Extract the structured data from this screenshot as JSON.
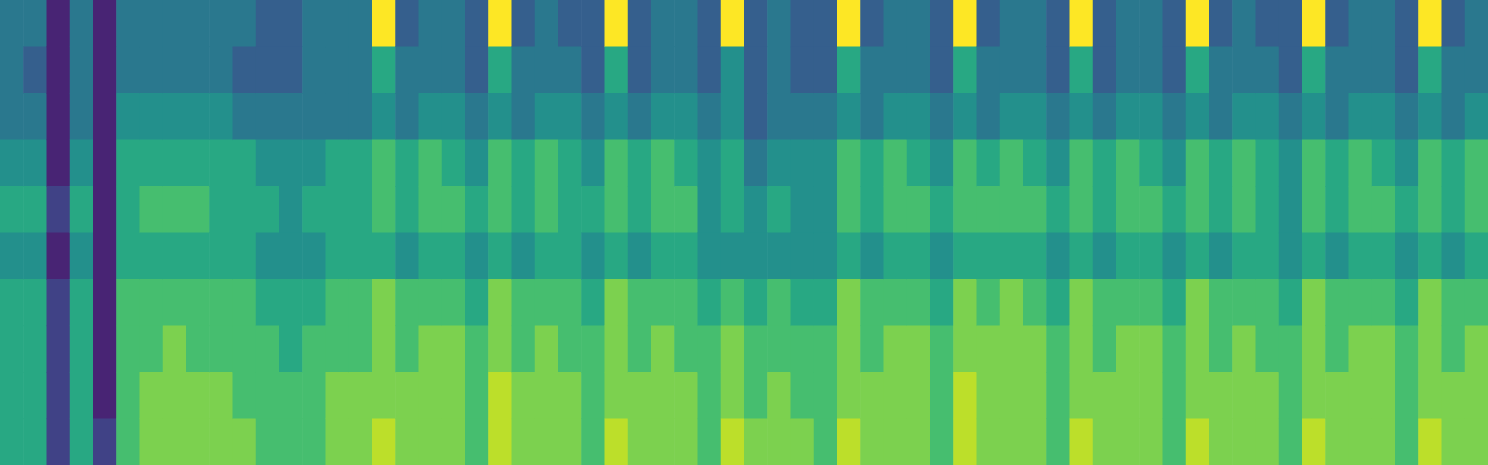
{
  "chart_data": {
    "type": "heatmap",
    "tick_labels": false,
    "color_range": [
      0,
      10
    ],
    "cells": [
      [
        4,
        4,
        4,
        5,
        6,
        5,
        6,
        6,
        6,
        6
      ],
      [
        4,
        3,
        4,
        5,
        6,
        5,
        6,
        6,
        6,
        6
      ],
      [
        1,
        1,
        1,
        1,
        2,
        1,
        2,
        2,
        2,
        2
      ],
      [
        4,
        4,
        4,
        5,
        6,
        5,
        6,
        6,
        6,
        6
      ],
      [
        1,
        1,
        1,
        1,
        1,
        1,
        1,
        1,
        1,
        2
      ],
      [
        4,
        4,
        5,
        6,
        6,
        6,
        7,
        7,
        7,
        7
      ],
      [
        4,
        4,
        5,
        6,
        7,
        6,
        7,
        7,
        8,
        8
      ],
      [
        4,
        4,
        5,
        6,
        7,
        6,
        7,
        8,
        8,
        8
      ],
      [
        4,
        4,
        5,
        6,
        7,
        6,
        7,
        7,
        8,
        8
      ],
      [
        4,
        4,
        5,
        6,
        6,
        6,
        7,
        7,
        8,
        8
      ],
      [
        4,
        3,
        4,
        6,
        6,
        6,
        7,
        7,
        7,
        8
      ],
      [
        3,
        3,
        4,
        5,
        6,
        5,
        6,
        7,
        7,
        7
      ],
      [
        3,
        3,
        4,
        5,
        5,
        5,
        6,
        6,
        7,
        7
      ],
      [
        4,
        4,
        4,
        5,
        6,
        5,
        6,
        7,
        7,
        7
      ],
      [
        4,
        4,
        4,
        6,
        6,
        6,
        7,
        7,
        8,
        8
      ],
      [
        4,
        4,
        4,
        6,
        6,
        6,
        7,
        7,
        8,
        8
      ],
      [
        10,
        6,
        5,
        7,
        7,
        6,
        8,
        8,
        8,
        9
      ],
      [
        3,
        4,
        4,
        6,
        6,
        5,
        7,
        7,
        8,
        8
      ],
      [
        4,
        4,
        5,
        7,
        7,
        6,
        7,
        8,
        8,
        8
      ],
      [
        4,
        4,
        5,
        6,
        7,
        6,
        7,
        8,
        8,
        8
      ],
      [
        3,
        3,
        4,
        5,
        6,
        5,
        6,
        7,
        7,
        7
      ],
      [
        10,
        6,
        5,
        7,
        7,
        6,
        8,
        8,
        9,
        9
      ],
      [
        3,
        4,
        4,
        6,
        6,
        5,
        7,
        7,
        8,
        8
      ],
      [
        4,
        4,
        5,
        7,
        7,
        6,
        7,
        8,
        8,
        8
      ],
      [
        3,
        4,
        5,
        6,
        6,
        6,
        7,
        7,
        8,
        8
      ],
      [
        3,
        3,
        4,
        5,
        6,
        5,
        6,
        7,
        7,
        7
      ],
      [
        10,
        6,
        5,
        7,
        7,
        6,
        8,
        8,
        8,
        9
      ],
      [
        3,
        3,
        4,
        6,
        6,
        5,
        7,
        7,
        8,
        8
      ],
      [
        4,
        4,
        5,
        7,
        7,
        6,
        7,
        8,
        8,
        8
      ],
      [
        4,
        4,
        5,
        6,
        7,
        6,
        7,
        7,
        8,
        8
      ],
      [
        3,
        3,
        4,
        5,
        5,
        5,
        6,
        7,
        7,
        7
      ],
      [
        10,
        5,
        5,
        6,
        6,
        5,
        7,
        8,
        8,
        9
      ],
      [
        3,
        3,
        3,
        4,
        5,
        5,
        6,
        7,
        7,
        8
      ],
      [
        4,
        4,
        4,
        5,
        6,
        5,
        7,
        7,
        8,
        8
      ],
      [
        3,
        3,
        4,
        5,
        5,
        5,
        6,
        7,
        7,
        8
      ],
      [
        3,
        3,
        4,
        5,
        5,
        5,
        6,
        7,
        7,
        7
      ],
      [
        10,
        6,
        5,
        7,
        7,
        6,
        8,
        8,
        8,
        9
      ],
      [
        3,
        4,
        4,
        6,
        6,
        5,
        7,
        7,
        8,
        8
      ],
      [
        4,
        4,
        5,
        7,
        7,
        6,
        7,
        8,
        8,
        8
      ],
      [
        4,
        4,
        5,
        6,
        7,
        6,
        7,
        8,
        8,
        8
      ],
      [
        3,
        3,
        4,
        5,
        6,
        5,
        6,
        7,
        7,
        7
      ],
      [
        10,
        6,
        5,
        7,
        7,
        6,
        8,
        8,
        9,
        9
      ],
      [
        3,
        4,
        4,
        6,
        7,
        6,
        7,
        8,
        8,
        8
      ],
      [
        4,
        4,
        5,
        7,
        7,
        6,
        8,
        8,
        8,
        8
      ],
      [
        4,
        4,
        5,
        6,
        7,
        6,
        7,
        8,
        8,
        8
      ],
      [
        3,
        3,
        4,
        5,
        6,
        5,
        6,
        7,
        7,
        7
      ],
      [
        10,
        6,
        5,
        7,
        7,
        6,
        8,
        8,
        8,
        9
      ],
      [
        3,
        3,
        4,
        6,
        6,
        5,
        7,
        7,
        8,
        8
      ],
      [
        4,
        4,
        5,
        7,
        7,
        6,
        7,
        8,
        8,
        8
      ],
      [
        4,
        4,
        5,
        6,
        7,
        6,
        7,
        8,
        8,
        8
      ],
      [
        3,
        3,
        4,
        5,
        6,
        5,
        6,
        7,
        7,
        7
      ],
      [
        10,
        6,
        5,
        7,
        7,
        6,
        8,
        8,
        8,
        9
      ],
      [
        3,
        4,
        4,
        6,
        6,
        5,
        7,
        7,
        8,
        8
      ],
      [
        4,
        4,
        5,
        7,
        7,
        6,
        7,
        8,
        8,
        8
      ],
      [
        3,
        4,
        5,
        6,
        6,
        6,
        7,
        7,
        8,
        8
      ],
      [
        3,
        3,
        4,
        5,
        5,
        5,
        6,
        7,
        7,
        7
      ],
      [
        10,
        6,
        5,
        7,
        7,
        6,
        8,
        8,
        8,
        9
      ],
      [
        3,
        4,
        4,
        6,
        6,
        5,
        7,
        7,
        8,
        8
      ],
      [
        4,
        4,
        5,
        7,
        7,
        6,
        7,
        8,
        8,
        8
      ],
      [
        4,
        4,
        5,
        6,
        7,
        6,
        7,
        8,
        8,
        8
      ],
      [
        3,
        3,
        4,
        5,
        6,
        5,
        6,
        7,
        7,
        7
      ],
      [
        10,
        6,
        5,
        7,
        7,
        6,
        8,
        8,
        8,
        9
      ],
      [
        3,
        4,
        4,
        6,
        6,
        5,
        7,
        7,
        8,
        8
      ],
      [
        4,
        4,
        5,
        7,
        7,
        6,
        7,
        8,
        8,
        8
      ]
    ]
  }
}
